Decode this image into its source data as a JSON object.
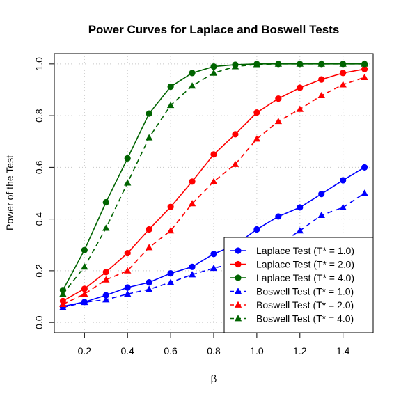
{
  "chart_data": {
    "type": "line",
    "title": "Power Curves for Laplace and Boswell Tests",
    "xlabel": "β",
    "ylabel": "Power of the Test",
    "xlim": [
      0.06,
      1.54
    ],
    "ylim": [
      -0.04,
      1.04
    ],
    "x_ticks": [
      0.2,
      0.4,
      0.6,
      0.8,
      1.0,
      1.2,
      1.4
    ],
    "x_tick_labels": [
      "0.2",
      "0.4",
      "0.6",
      "0.8",
      "1.0",
      "1.2",
      "1.4"
    ],
    "y_ticks": [
      0.0,
      0.2,
      0.4,
      0.6,
      0.8,
      1.0
    ],
    "y_tick_labels": [
      "0.0",
      "0.2",
      "0.4",
      "0.6",
      "0.8",
      "1.0"
    ],
    "grid": true,
    "legend_position": "bottom-right",
    "x": [
      0.1,
      0.2,
      0.3,
      0.4,
      0.5,
      0.6,
      0.7,
      0.8,
      0.9,
      1.0,
      1.1,
      1.2,
      1.3,
      1.4,
      1.5
    ],
    "series": [
      {
        "name": "Laplace Test (T* = 1.0)",
        "color": "#0000ff",
        "dash": "solid",
        "marker": "circle",
        "values": [
          0.062,
          0.079,
          0.105,
          0.135,
          0.155,
          0.19,
          0.215,
          0.265,
          0.3,
          0.36,
          0.41,
          0.445,
          0.497,
          0.55,
          0.6
        ]
      },
      {
        "name": "Laplace Test (T* = 2.0)",
        "color": "#ff0000",
        "dash": "solid",
        "marker": "circle",
        "values": [
          0.083,
          0.13,
          0.195,
          0.268,
          0.36,
          0.447,
          0.545,
          0.65,
          0.728,
          0.812,
          0.866,
          0.908,
          0.94,
          0.965,
          0.98
        ]
      },
      {
        "name": "Laplace Test (T* = 4.0)",
        "color": "#006400",
        "dash": "solid",
        "marker": "circle",
        "values": [
          0.125,
          0.28,
          0.465,
          0.635,
          0.808,
          0.912,
          0.965,
          0.99,
          0.997,
          1.0,
          1.0,
          1.0,
          1.0,
          1.0,
          1.0
        ]
      },
      {
        "name": "Boswell Test (T* = 1.0)",
        "color": "#0000ff",
        "dash": "dashed",
        "marker": "triangle",
        "values": [
          0.058,
          0.078,
          0.088,
          0.11,
          0.128,
          0.155,
          0.185,
          0.21,
          0.23,
          0.26,
          0.3,
          0.355,
          0.415,
          0.445,
          0.5
        ]
      },
      {
        "name": "Boswell Test (T* = 2.0)",
        "color": "#ff0000",
        "dash": "dashed",
        "marker": "triangle",
        "values": [
          0.07,
          0.11,
          0.165,
          0.2,
          0.29,
          0.355,
          0.46,
          0.545,
          0.612,
          0.71,
          0.778,
          0.825,
          0.878,
          0.92,
          0.948
        ]
      },
      {
        "name": "Boswell Test (T* = 4.0)",
        "color": "#006400",
        "dash": "dashed",
        "marker": "triangle",
        "values": [
          0.11,
          0.215,
          0.365,
          0.54,
          0.715,
          0.84,
          0.915,
          0.965,
          0.99,
          0.998,
          1.0,
          1.0,
          1.0,
          1.0,
          1.0
        ]
      }
    ]
  }
}
